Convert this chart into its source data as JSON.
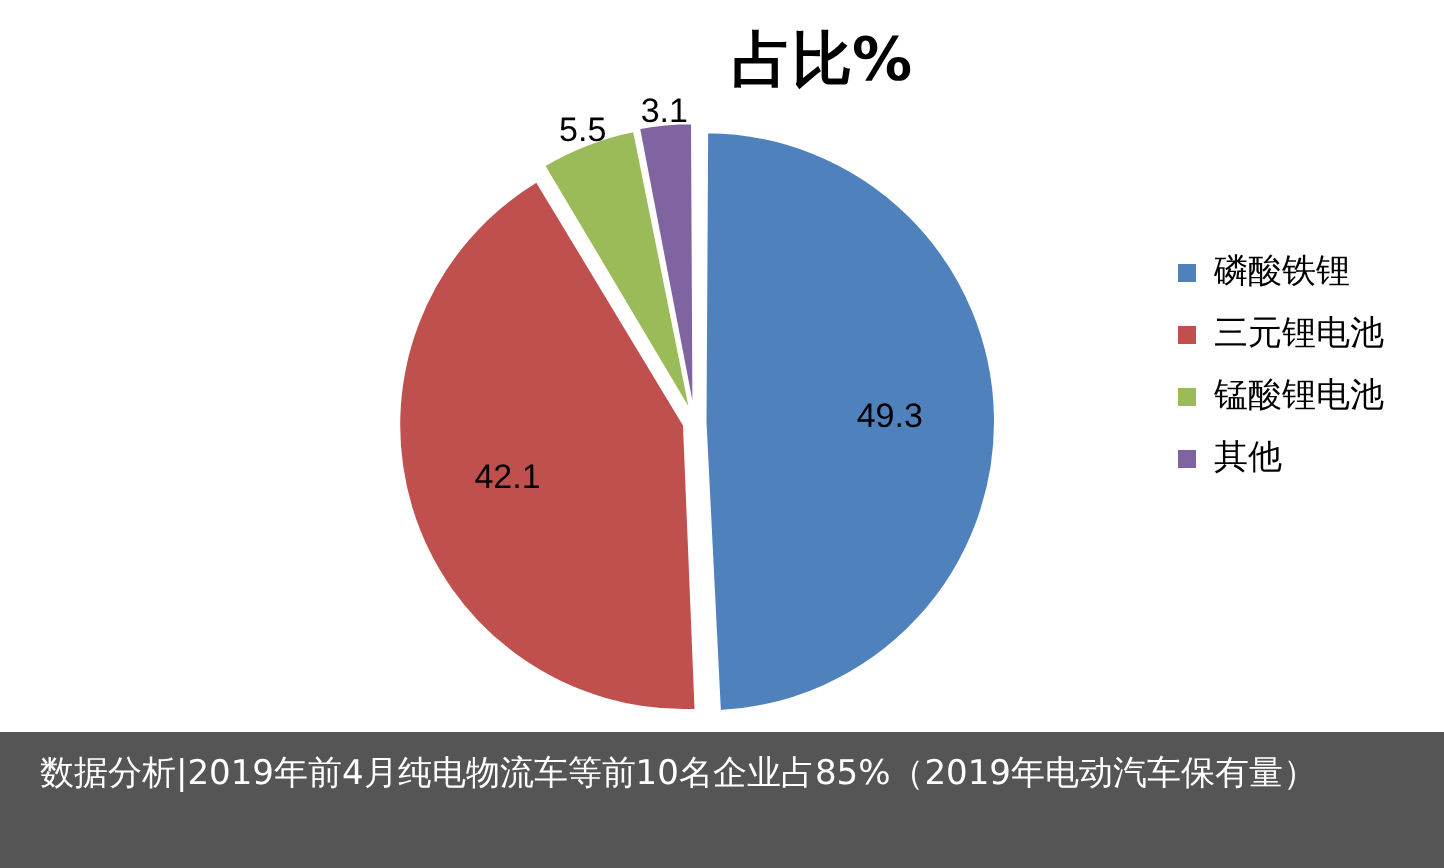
{
  "chart_data": {
    "type": "pie",
    "title": "占比%",
    "categories": [
      "磷酸铁锂",
      "三元锂电池",
      "锰酸锂电池",
      "其他"
    ],
    "values": [
      49.3,
      42.1,
      5.5,
      3.1
    ],
    "colors": [
      "#4f81bd",
      "#c0504d",
      "#9bbb59",
      "#8064a2"
    ],
    "data_labels": true,
    "legend": "right",
    "annotations": [
      "数据分析|2019年前4月纯电物流车等前10名企业占85%（2019年电动汽车保有量）"
    ]
  }
}
